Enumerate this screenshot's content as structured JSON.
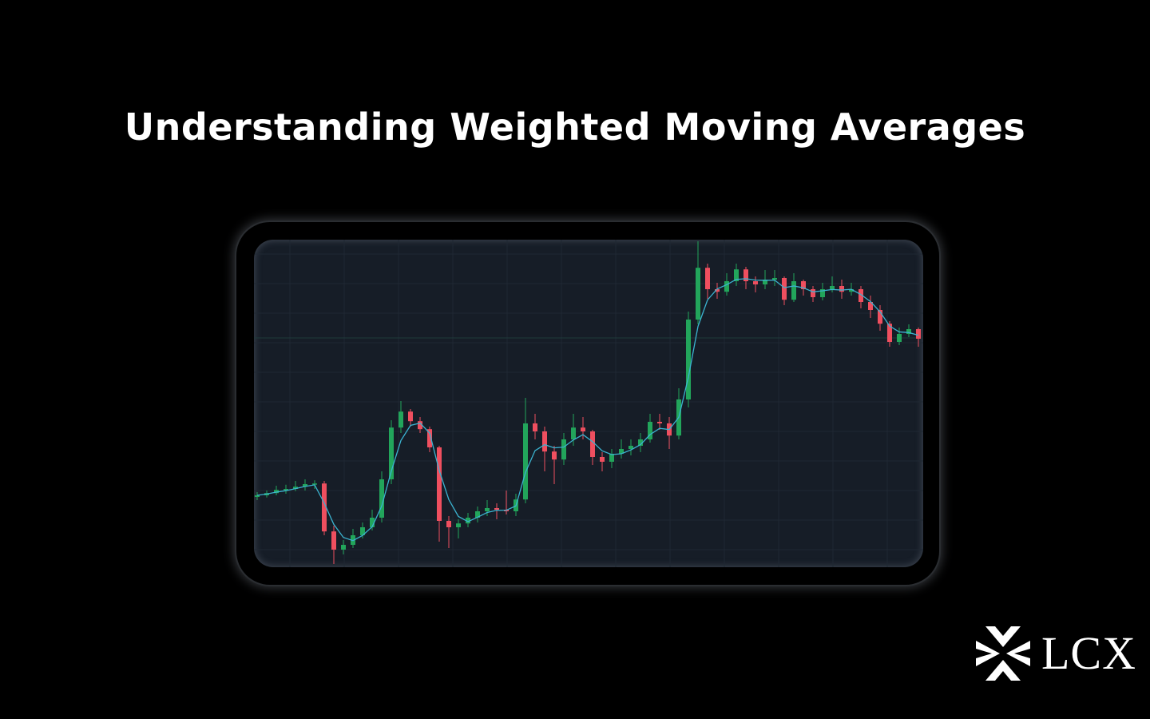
{
  "title": "Understanding Weighted Moving Averages",
  "logo": {
    "text": "LCX",
    "icon": "lcx-x-mark-icon"
  },
  "colors": {
    "background": "#000000",
    "panel": "#161d27",
    "up": "#22a55b",
    "down": "#ef4f5f",
    "wma_line": "#3bb3d0",
    "grid": "#1f2833"
  },
  "chart_data": {
    "type": "candlestick",
    "title": "",
    "xlabel": "",
    "ylabel": "",
    "ylim": [
      0,
      102.5
    ],
    "grid": true,
    "ohlc": [
      [
        22,
        23.5,
        21,
        22.5
      ],
      [
        22.5,
        24,
        21.8,
        23.2
      ],
      [
        23.2,
        25.5,
        22.5,
        24.2
      ],
      [
        24.2,
        25.8,
        23,
        24.5
      ],
      [
        24.5,
        27,
        23.8,
        25.2
      ],
      [
        25.2,
        27.5,
        24,
        26
      ],
      [
        26,
        27.2,
        24.5,
        26.2
      ],
      [
        26.2,
        27,
        10,
        11.2
      ],
      [
        11.2,
        13,
        1,
        5.5
      ],
      [
        5.5,
        8.5,
        4,
        7
      ],
      [
        7,
        12,
        6,
        10
      ],
      [
        10,
        14,
        9,
        12.5
      ],
      [
        12.5,
        18,
        11.5,
        15.5
      ],
      [
        15.5,
        30,
        14,
        27.5
      ],
      [
        27.5,
        46,
        26,
        43.7
      ],
      [
        43.7,
        52,
        42,
        48.7
      ],
      [
        48.7,
        49.5,
        44,
        45.7
      ],
      [
        45.7,
        47,
        42,
        43.2
      ],
      [
        43.2,
        44,
        36,
        37.5
      ],
      [
        37.5,
        38,
        8,
        14.5
      ],
      [
        14.5,
        16,
        6,
        12.5
      ],
      [
        12.5,
        15,
        9,
        13.7
      ],
      [
        13.7,
        17,
        12.5,
        15.5
      ],
      [
        15.5,
        19,
        14,
        17.5
      ],
      [
        17.5,
        21,
        16,
        18.5
      ],
      [
        18.5,
        20,
        15,
        18
      ],
      [
        18,
        24,
        16.5,
        17.5
      ],
      [
        17.5,
        23,
        16,
        21.2
      ],
      [
        21.2,
        53,
        20,
        45
      ],
      [
        45,
        48,
        40,
        42.5
      ],
      [
        42.5,
        44,
        30,
        36.2
      ],
      [
        36.2,
        38,
        26,
        33.7
      ],
      [
        33.7,
        42,
        32,
        40
      ],
      [
        40,
        48,
        38,
        43.7
      ],
      [
        43.7,
        47,
        40,
        42.5
      ],
      [
        42.5,
        43,
        32,
        34.5
      ],
      [
        34.5,
        36,
        30,
        33
      ],
      [
        33,
        37,
        31,
        35.5
      ],
      [
        35.5,
        40,
        34,
        37
      ],
      [
        37,
        40,
        35,
        38
      ],
      [
        38,
        42,
        36,
        40
      ],
      [
        40,
        48,
        39,
        45.5
      ],
      [
        45.5,
        48,
        43,
        45
      ],
      [
        45,
        47,
        37,
        41.2
      ],
      [
        41.2,
        56,
        40,
        52.5
      ],
      [
        52.5,
        80,
        50,
        77.5
      ],
      [
        77.5,
        102,
        76,
        93.7
      ],
      [
        93.7,
        95,
        84,
        87
      ],
      [
        87,
        89,
        84,
        86.2
      ],
      [
        86.2,
        92,
        85,
        89.5
      ],
      [
        89.5,
        95,
        88,
        93.2
      ],
      [
        93.2,
        94,
        87,
        89.5
      ],
      [
        89.5,
        91,
        86,
        88.5
      ],
      [
        88.5,
        93,
        87,
        90
      ],
      [
        90,
        93,
        88,
        90.5
      ],
      [
        90.5,
        91,
        82,
        83.7
      ],
      [
        83.7,
        92,
        83,
        89.5
      ],
      [
        89.5,
        90,
        85,
        87
      ],
      [
        87,
        88,
        83,
        84.5
      ],
      [
        84.5,
        89,
        83.5,
        87
      ],
      [
        87,
        91,
        86,
        88
      ],
      [
        88,
        90,
        84,
        86.2
      ],
      [
        86.2,
        89,
        85,
        87
      ],
      [
        87,
        88,
        81,
        83
      ],
      [
        83,
        85,
        78,
        80.5
      ],
      [
        80.5,
        82,
        74,
        76.2
      ],
      [
        76.2,
        77,
        69,
        70.5
      ],
      [
        70.5,
        75,
        69.5,
        73
      ],
      [
        73,
        76,
        72,
        74.5
      ],
      [
        74.5,
        75,
        69,
        71.5
      ]
    ],
    "overlay": "weighted moving average"
  }
}
